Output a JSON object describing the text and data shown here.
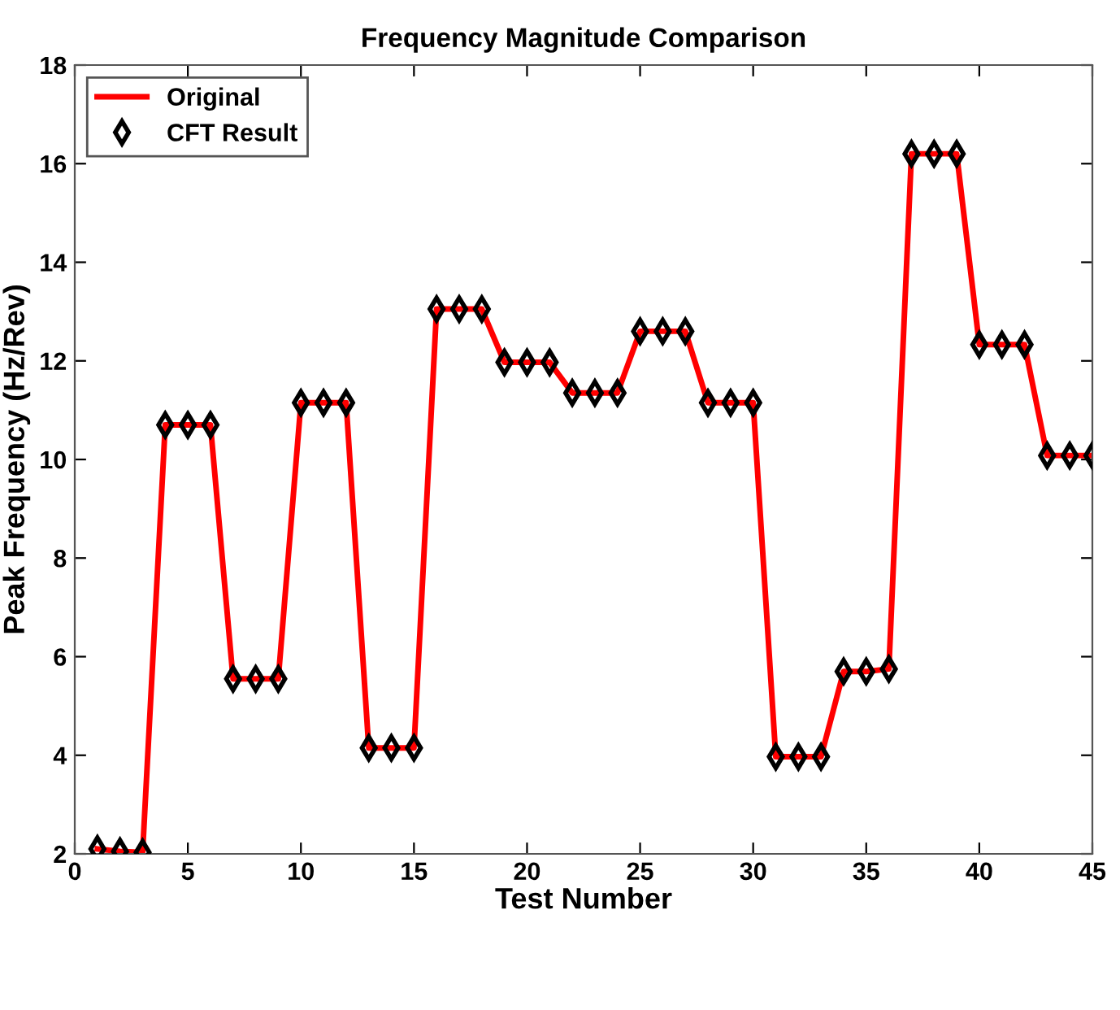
{
  "chart_data": {
    "type": "line",
    "title": "Frequency Magnitude Comparison",
    "xlabel": "Test Number",
    "ylabel": "Peak Frequency (Hz/Rev)",
    "x": [
      1,
      2,
      3,
      4,
      5,
      6,
      7,
      8,
      9,
      10,
      11,
      12,
      13,
      14,
      15,
      16,
      17,
      18,
      19,
      20,
      21,
      22,
      23,
      24,
      25,
      26,
      27,
      28,
      29,
      30,
      31,
      32,
      33,
      34,
      35,
      36,
      37,
      38,
      39,
      40,
      41,
      42,
      43,
      44,
      45
    ],
    "series": [
      {
        "name": "Original",
        "color": "#ff0000",
        "marker": "none",
        "line_style": "solid",
        "values": [
          2.1,
          2.05,
          2.03,
          10.7,
          10.7,
          10.7,
          5.55,
          5.55,
          5.55,
          11.15,
          11.15,
          11.15,
          4.15,
          4.15,
          4.15,
          13.05,
          13.05,
          13.05,
          11.97,
          11.97,
          11.97,
          11.35,
          11.35,
          11.35,
          12.6,
          12.6,
          12.6,
          11.15,
          11.15,
          11.15,
          3.97,
          3.97,
          3.97,
          5.7,
          5.7,
          5.75,
          16.2,
          16.2,
          16.2,
          12.33,
          12.33,
          12.33,
          10.08,
          10.08,
          10.08
        ]
      },
      {
        "name": "CFT Result",
        "type": "scatter",
        "color": "#000000",
        "marker": "diamond",
        "values": [
          2.1,
          2.05,
          2.03,
          10.7,
          10.7,
          10.7,
          5.55,
          5.55,
          5.55,
          11.15,
          11.15,
          11.15,
          4.15,
          4.15,
          4.15,
          13.05,
          13.05,
          13.05,
          11.97,
          11.97,
          11.97,
          11.35,
          11.35,
          11.35,
          12.6,
          12.6,
          12.6,
          11.15,
          11.15,
          11.15,
          3.97,
          3.97,
          3.97,
          5.7,
          5.7,
          5.75,
          16.2,
          16.2,
          16.2,
          12.33,
          12.33,
          12.33,
          10.08,
          10.08,
          10.08
        ]
      }
    ],
    "xlim": [
      0,
      45
    ],
    "xticks": [
      0,
      5,
      10,
      15,
      20,
      25,
      30,
      35,
      40,
      45
    ],
    "ylim": [
      2,
      18
    ],
    "yticks": [
      2,
      4,
      6,
      8,
      10,
      12,
      14,
      16,
      18
    ],
    "grid": false,
    "legend": "top left"
  }
}
